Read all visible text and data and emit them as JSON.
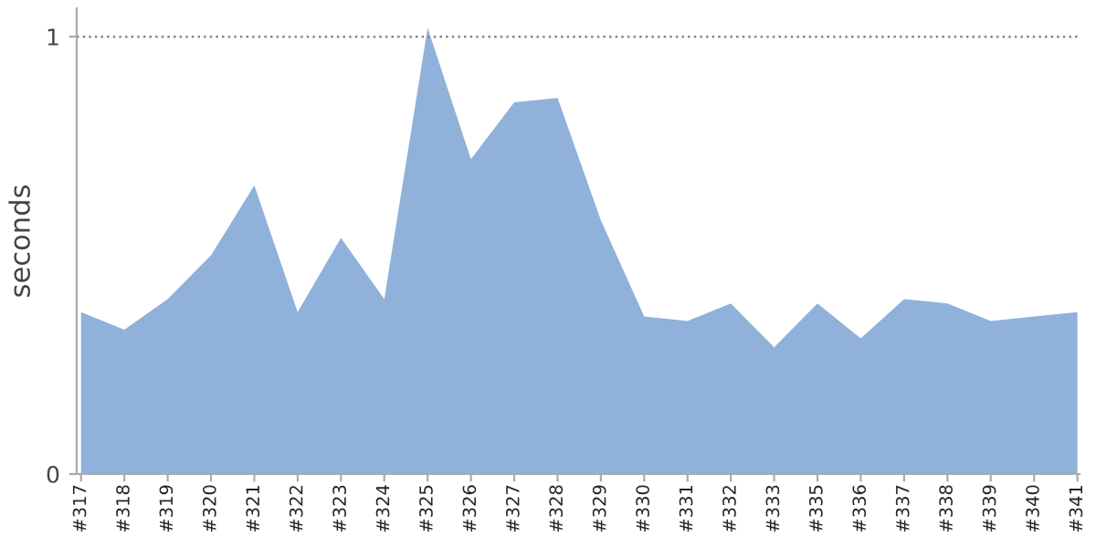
{
  "chart_data": {
    "type": "area",
    "ylabel": "seconds",
    "categories": [
      "#317",
      "#318",
      "#319",
      "#320",
      "#321",
      "#322",
      "#323",
      "#324",
      "#325",
      "#326",
      "#327",
      "#328",
      "#329",
      "#330",
      "#331",
      "#332",
      "#333",
      "#335",
      "#336",
      "#337",
      "#338",
      "#339",
      "#340",
      "#341"
    ],
    "series": [
      {
        "color": "#8fb1da",
        "values": [
          0.37,
          0.33,
          0.4,
          0.5,
          0.66,
          0.37,
          0.54,
          0.4,
          1.02,
          0.72,
          0.85,
          0.86,
          0.58,
          0.36,
          0.35,
          0.39,
          0.29,
          0.39,
          0.31,
          0.4,
          0.39,
          0.35,
          0.36,
          0.37
        ]
      }
    ],
    "ylim": [
      0,
      1.065
    ],
    "yticks": [
      0,
      1
    ],
    "ref_lines": [
      {
        "axis": "y",
        "value": 1,
        "color": "#888888",
        "line_style": "dotted"
      }
    ],
    "grid": false
  }
}
